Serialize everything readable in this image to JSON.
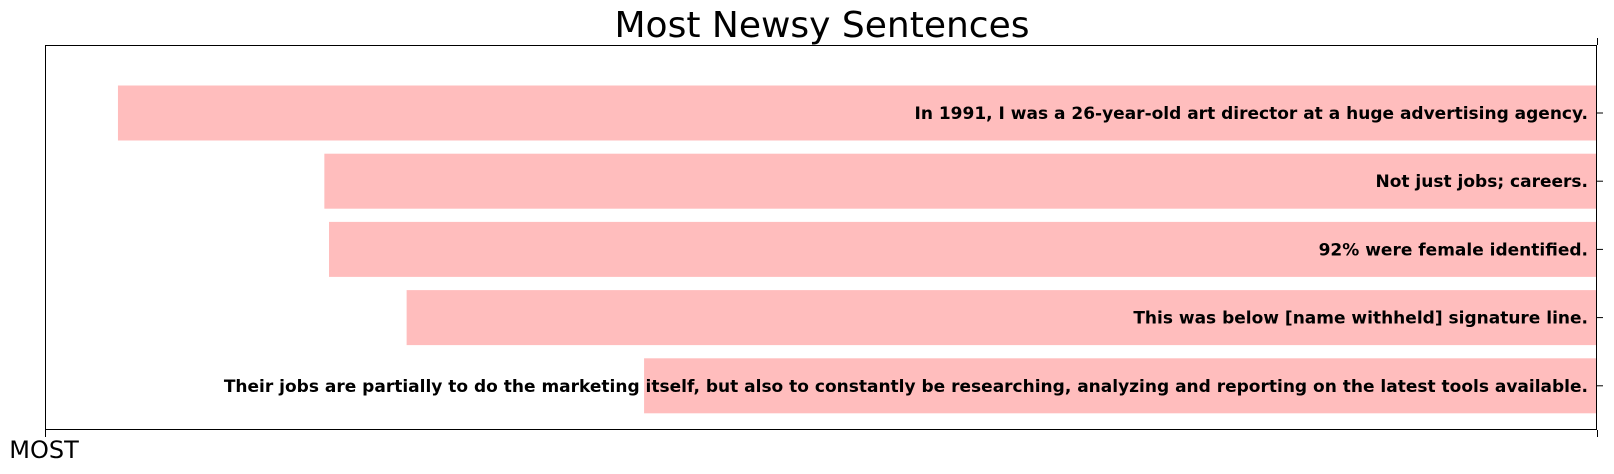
{
  "chart_data": {
    "type": "bar",
    "orientation": "horizontal",
    "title": "Most Newsy Sentences",
    "x_start_label": "MOST",
    "bar_color": "#ffbdbd",
    "grid": false,
    "xlim": [
      0,
      1
    ],
    "categories": [
      "In 1991, I was a 26-year-old art director at a huge advertising agency.",
      "Not just jobs; careers.",
      "92% were female identified.",
      "This was below [name withheld] signature line.",
      "Their jobs are partially to do the marketing itself, but also to constantly be researching, analyzing and reporting on the latest tools available."
    ],
    "values": [
      0.953,
      0.82,
      0.817,
      0.767,
      0.614
    ]
  }
}
